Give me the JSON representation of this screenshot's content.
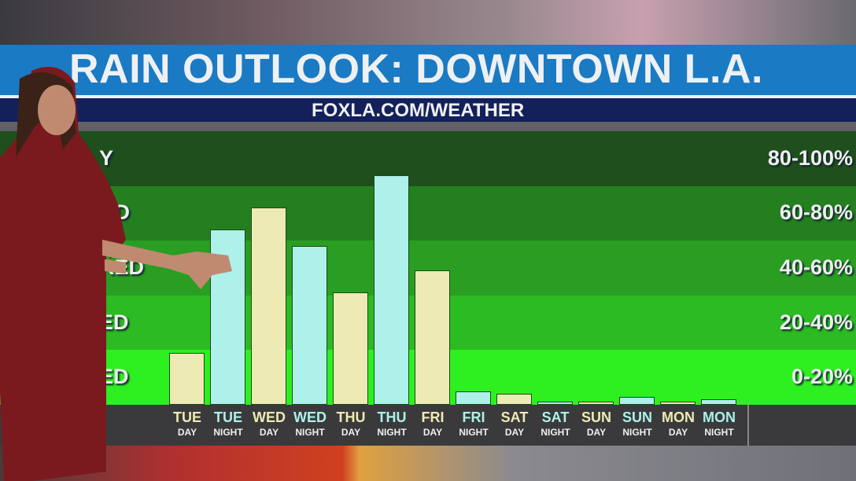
{
  "header": {
    "title": "RAIN OUTLOOK: DOWNTOWN L.A.",
    "subtitle": "FOXLA.COM/WEATHER"
  },
  "colors": {
    "title_bar": "#1a7ac4",
    "subtitle_bar": "#14205a",
    "day_bar": "#eeeab4",
    "night_bar": "#aef0ea",
    "axis_bar": "#3a3a3c"
  },
  "chart_data": {
    "type": "bar",
    "ylim": [
      0,
      100
    ],
    "bands": [
      {
        "range": "80-100%",
        "category_visible": "Y",
        "color": "#1f4f1c"
      },
      {
        "range": "60-80%",
        "category_visible": "AD",
        "color": "#24801f"
      },
      {
        "range": "40-60%",
        "category_visible": "RED",
        "color": "#2a9e22"
      },
      {
        "range": "20-40%",
        "category_visible": "ED",
        "color": "#2cbb22"
      },
      {
        "range": "0-20%",
        "category_visible": "ED",
        "color": "#2ef020"
      }
    ],
    "categories": [
      {
        "day": "TUE",
        "period": "DAY",
        "value": 19
      },
      {
        "day": "TUE",
        "period": "NIGHT",
        "value": 64
      },
      {
        "day": "WED",
        "period": "DAY",
        "value": 72
      },
      {
        "day": "WED",
        "period": "NIGHT",
        "value": 58
      },
      {
        "day": "THU",
        "period": "DAY",
        "value": 41
      },
      {
        "day": "THU",
        "period": "NIGHT",
        "value": 84
      },
      {
        "day": "FRI",
        "period": "DAY",
        "value": 49
      },
      {
        "day": "FRI",
        "period": "NIGHT",
        "value": 5
      },
      {
        "day": "SAT",
        "period": "DAY",
        "value": 4
      },
      {
        "day": "SAT",
        "period": "NIGHT",
        "value": 1
      },
      {
        "day": "SUN",
        "period": "DAY",
        "value": 1
      },
      {
        "day": "SUN",
        "period": "NIGHT",
        "value": 3
      },
      {
        "day": "MON",
        "period": "DAY",
        "value": 1
      },
      {
        "day": "MON",
        "period": "NIGHT",
        "value": 2
      }
    ]
  }
}
